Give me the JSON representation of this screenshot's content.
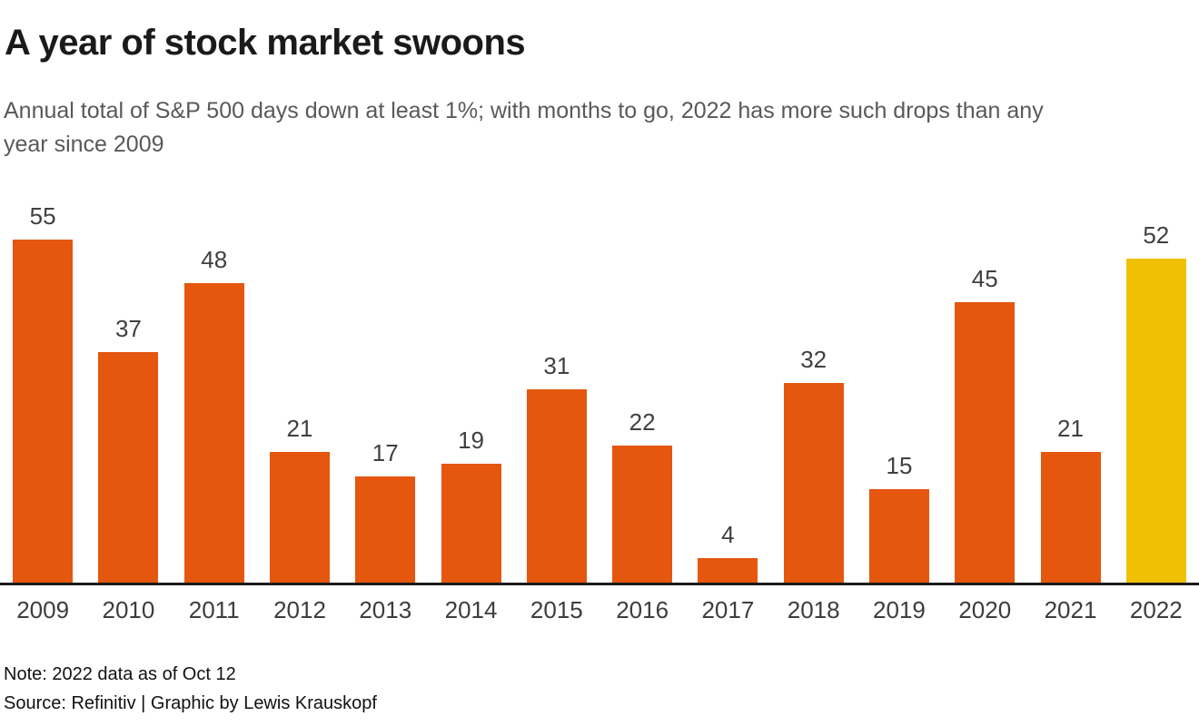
{
  "header": {
    "title": "A year of stock market swoons",
    "subtitle": "Annual total of S&P 500 days down at least 1%; with months to go, 2022 has more such drops than any year since 2009",
    "subtitle_lines": [
      "Annual total of S&P 500 days down at least 1%; with months to go, 2022 has more such drops than any",
      "year since 2009"
    ]
  },
  "chart_data": {
    "type": "bar",
    "title": "A year of stock market swoons",
    "subtitle": "Annual total of S&P 500 days down at least 1%; with months to go, 2022 has more such drops than any year since 2009",
    "categories": [
      "2009",
      "2010",
      "2011",
      "2012",
      "2013",
      "2014",
      "2015",
      "2016",
      "2017",
      "2018",
      "2019",
      "2020",
      "2021",
      "2022"
    ],
    "values": [
      55,
      37,
      48,
      21,
      17,
      19,
      31,
      22,
      4,
      32,
      15,
      45,
      21,
      52
    ],
    "xlabel": "",
    "ylabel": "",
    "ylim": [
      0,
      55
    ],
    "grid": false,
    "legend": "none",
    "value_labels_shown": true,
    "bar_color": "#E5560F",
    "highlight_color": "#F0C102",
    "highlight_category": "2022",
    "axis_line_color": "#1a1a1a"
  },
  "footer": {
    "note": "Note: 2022 data as of Oct 12",
    "source": "Source: Refinitiv | Graphic by Lewis Krauskopf"
  }
}
